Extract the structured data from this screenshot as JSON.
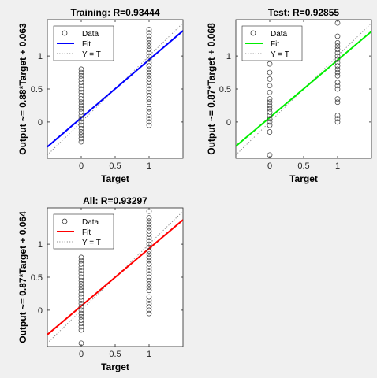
{
  "window": {
    "background": "#f0f0f0"
  },
  "chart_data": [
    {
      "type": "scatter",
      "title": "Training: R=0.93444",
      "xlabel": "Target",
      "ylabel": "Output ~= 0.88*Target + 0.063",
      "xlim": [
        -0.5,
        1.5
      ],
      "ylim": [
        -0.55,
        1.55
      ],
      "xticks": [
        "0",
        "0.5",
        "1"
      ],
      "yticks": [
        "0",
        "0.5",
        "1"
      ],
      "fit": {
        "slope": 0.88,
        "intercept": 0.063,
        "color": "#0000ff"
      },
      "legend": {
        "position": "top-left",
        "entries": [
          "Data",
          "Fit",
          "Y = T"
        ]
      },
      "grid": false,
      "series": [
        {
          "name": "Data",
          "x": 0,
          "y": [
            -0.3,
            -0.25,
            -0.2,
            -0.15,
            -0.1,
            -0.05,
            0,
            0.05,
            0.1,
            0.15,
            0.2,
            0.25,
            0.3,
            0.35,
            0.4,
            0.45,
            0.5,
            0.55,
            0.6,
            0.65,
            0.7,
            0.75,
            0.8
          ]
        },
        {
          "name": "Data",
          "x": 1,
          "y": [
            -0.05,
            0,
            0.05,
            0.1,
            0.15,
            0.2,
            0.3,
            0.35,
            0.4,
            0.45,
            0.5,
            0.55,
            0.6,
            0.65,
            0.7,
            0.75,
            0.8,
            0.85,
            0.9,
            0.95,
            1.0,
            1.05,
            1.1,
            1.15,
            1.2,
            1.25,
            1.3,
            1.35,
            1.4
          ]
        }
      ]
    },
    {
      "type": "scatter",
      "title": "Test: R=0.92855",
      "xlabel": "Target",
      "ylabel": "Output ~= 0.87*Target + 0.068",
      "xlim": [
        -0.5,
        1.5
      ],
      "ylim": [
        -0.55,
        1.55
      ],
      "xticks": [
        "0",
        "0.5",
        "1"
      ],
      "yticks": [
        "0",
        "0.5",
        "1"
      ],
      "fit": {
        "slope": 0.87,
        "intercept": 0.068,
        "color": "#00ee00"
      },
      "legend": {
        "position": "top-left",
        "entries": [
          "Data",
          "Fit",
          "Y = T"
        ]
      },
      "grid": false,
      "series": [
        {
          "name": "Data",
          "x": 0,
          "y": [
            -0.5,
            -0.15,
            -0.05,
            0,
            0.05,
            0.1,
            0.15,
            0.2,
            0.25,
            0.3,
            0.35,
            0.45,
            0.55,
            0.65,
            0.75,
            0.88
          ]
        },
        {
          "name": "Data",
          "x": 1,
          "y": [
            0,
            0.05,
            0.1,
            0.3,
            0.35,
            0.5,
            0.55,
            0.6,
            0.7,
            0.75,
            0.8,
            0.85,
            0.9,
            0.95,
            1.0,
            1.05,
            1.1,
            1.15,
            1.2,
            1.3,
            1.5
          ]
        }
      ]
    },
    {
      "type": "scatter",
      "title": "All: R=0.93297",
      "xlabel": "Target",
      "ylabel": "Output ~= 0.87*Target + 0.064",
      "xlim": [
        -0.5,
        1.5
      ],
      "ylim": [
        -0.55,
        1.55
      ],
      "xticks": [
        "0",
        "0.5",
        "1"
      ],
      "yticks": [
        "0",
        "0.5",
        "1"
      ],
      "fit": {
        "slope": 0.87,
        "intercept": 0.064,
        "color": "#ff0000"
      },
      "legend": {
        "position": "top-left",
        "entries": [
          "Data",
          "Fit",
          "Y = T"
        ]
      },
      "grid": false,
      "series": [
        {
          "name": "Data",
          "x": 0,
          "y": [
            -0.5,
            -0.3,
            -0.25,
            -0.2,
            -0.15,
            -0.1,
            -0.05,
            0,
            0.05,
            0.1,
            0.15,
            0.2,
            0.25,
            0.3,
            0.35,
            0.4,
            0.45,
            0.5,
            0.55,
            0.6,
            0.65,
            0.7,
            0.75,
            0.8
          ]
        },
        {
          "name": "Data",
          "x": 1,
          "y": [
            -0.05,
            0,
            0.05,
            0.1,
            0.15,
            0.2,
            0.3,
            0.35,
            0.4,
            0.45,
            0.5,
            0.55,
            0.6,
            0.65,
            0.7,
            0.75,
            0.8,
            0.85,
            0.9,
            0.95,
            1.0,
            1.05,
            1.1,
            1.15,
            1.2,
            1.25,
            1.3,
            1.35,
            1.4,
            1.5
          ]
        }
      ]
    }
  ]
}
